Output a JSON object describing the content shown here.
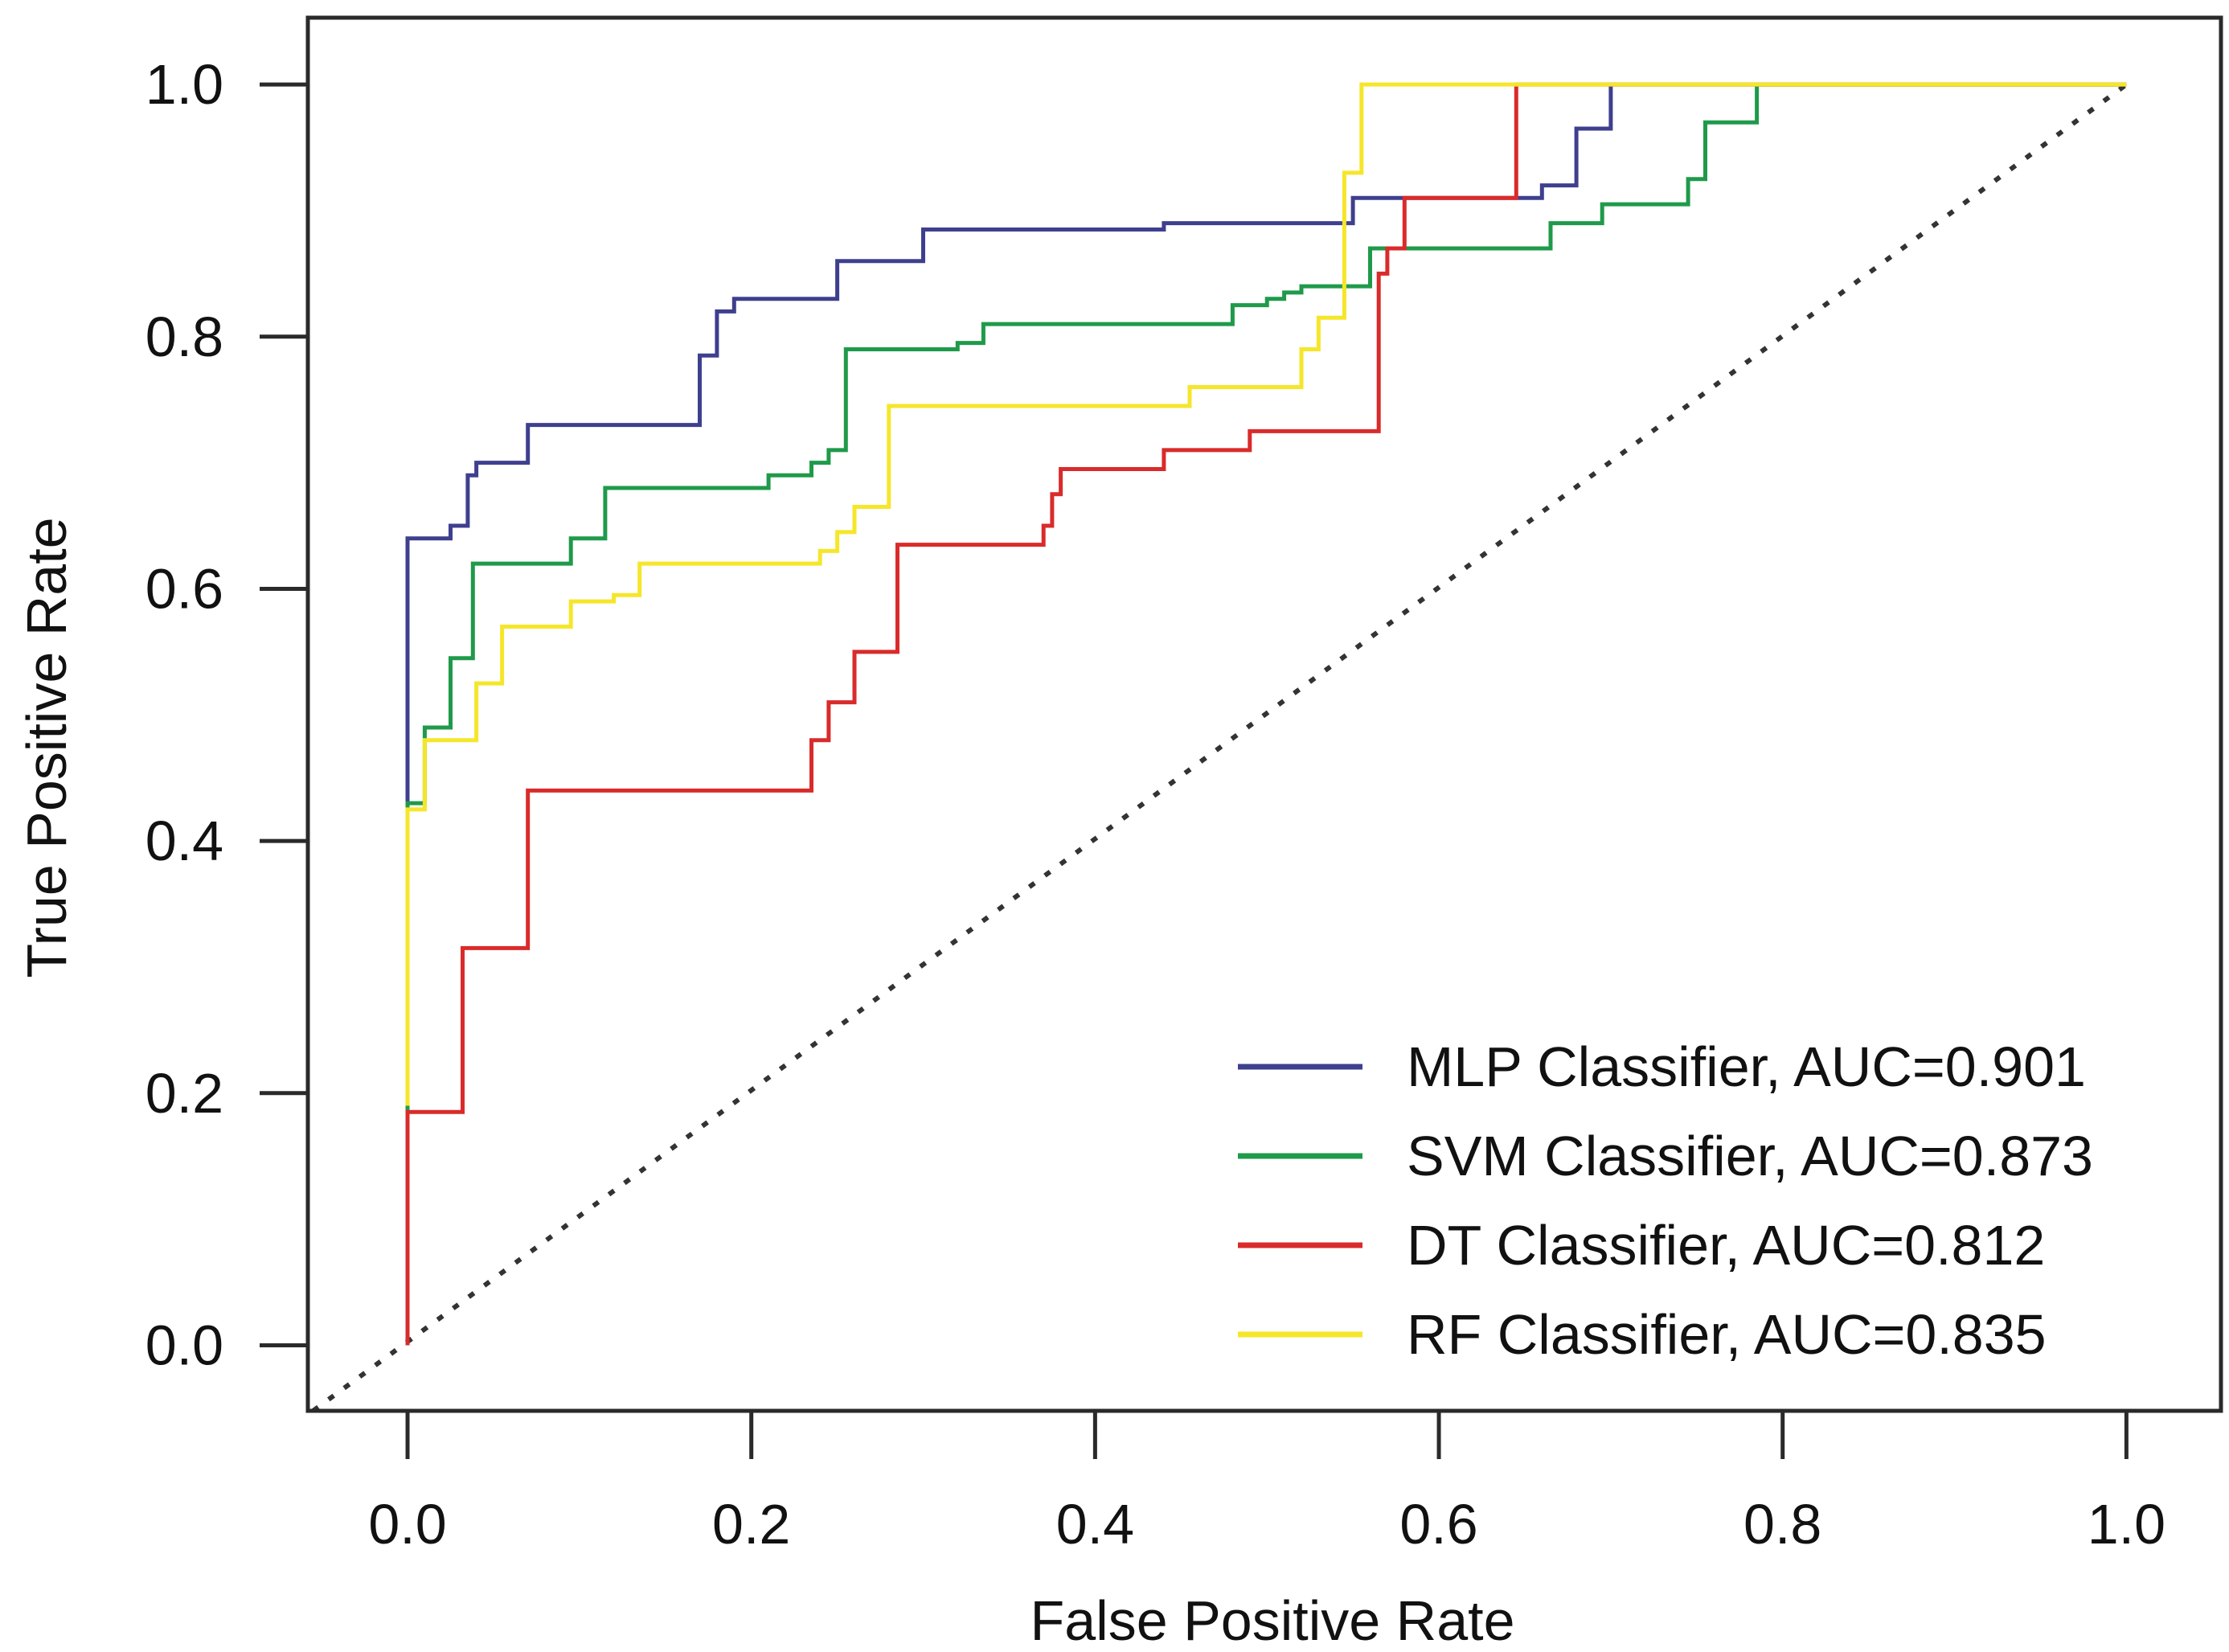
{
  "chart_data": {
    "type": "line",
    "title": "",
    "xlabel": "False Positive Rate",
    "ylabel": "True Positive Rate",
    "xlim": [
      -0.058,
      1.055
    ],
    "ylim": [
      -0.052,
      1.053
    ],
    "xticks": [
      0.0,
      0.2,
      0.4,
      0.6,
      0.8,
      1.0
    ],
    "xtick_labels": [
      "0.0",
      "0.2",
      "0.4",
      "0.6",
      "0.8",
      "1.0"
    ],
    "yticks": [
      0.0,
      0.2,
      0.4,
      0.6,
      0.8,
      1.0
    ],
    "ytick_labels": [
      "0.0",
      "0.2",
      "0.4",
      "0.6",
      "0.8",
      "1.0"
    ],
    "grid": false,
    "legend_position": "bottom-right",
    "reference_line": {
      "name": "chance",
      "style": "dotted",
      "color": "#333333",
      "x": [
        -0.055,
        1.0
      ],
      "y": [
        -0.052,
        1.0
      ]
    },
    "series": [
      {
        "name": "MLP Classifier, AUC=0.901",
        "color": "#3f3f8f",
        "x": [
          0.0,
          0.0,
          0.025,
          0.025,
          0.035,
          0.035,
          0.04,
          0.04,
          0.07,
          0.07,
          0.17,
          0.17,
          0.18,
          0.18,
          0.19,
          0.19,
          0.25,
          0.25,
          0.3,
          0.3,
          0.44,
          0.44,
          0.55,
          0.55,
          0.66,
          0.66,
          0.68,
          0.68,
          0.7,
          0.7,
          1.0
        ],
        "y": [
          0.0,
          0.64,
          0.64,
          0.65,
          0.65,
          0.69,
          0.69,
          0.7,
          0.7,
          0.73,
          0.73,
          0.785,
          0.785,
          0.82,
          0.82,
          0.83,
          0.83,
          0.86,
          0.86,
          0.885,
          0.885,
          0.89,
          0.89,
          0.91,
          0.91,
          0.92,
          0.92,
          0.965,
          0.965,
          1.0,
          1.0
        ]
      },
      {
        "name": "SVM Classifier, AUC=0.873",
        "color": "#1f9a4a",
        "x": [
          0.0,
          0.0,
          0.01,
          0.01,
          0.025,
          0.025,
          0.038,
          0.038,
          0.095,
          0.095,
          0.115,
          0.115,
          0.21,
          0.21,
          0.235,
          0.235,
          0.245,
          0.245,
          0.255,
          0.255,
          0.32,
          0.32,
          0.335,
          0.335,
          0.48,
          0.48,
          0.5,
          0.5,
          0.51,
          0.51,
          0.52,
          0.52,
          0.56,
          0.56,
          0.665,
          0.665,
          0.695,
          0.695,
          0.745,
          0.745,
          0.755,
          0.755,
          0.785,
          0.785,
          1.0
        ],
        "y": [
          0.0,
          0.43,
          0.43,
          0.49,
          0.49,
          0.545,
          0.545,
          0.62,
          0.62,
          0.64,
          0.64,
          0.68,
          0.68,
          0.69,
          0.69,
          0.7,
          0.7,
          0.71,
          0.71,
          0.79,
          0.79,
          0.795,
          0.795,
          0.81,
          0.81,
          0.825,
          0.825,
          0.83,
          0.83,
          0.835,
          0.835,
          0.84,
          0.84,
          0.87,
          0.87,
          0.89,
          0.89,
          0.905,
          0.905,
          0.925,
          0.925,
          0.97,
          0.97,
          1.0,
          1.0
        ]
      },
      {
        "name": "DT Classifier, AUC=0.812",
        "color": "#d92b2b",
        "x": [
          0.0,
          0.0,
          0.032,
          0.032,
          0.07,
          0.07,
          0.235,
          0.235,
          0.245,
          0.245,
          0.26,
          0.26,
          0.285,
          0.285,
          0.37,
          0.37,
          0.375,
          0.375,
          0.38,
          0.38,
          0.44,
          0.44,
          0.49,
          0.49,
          0.565,
          0.565,
          0.57,
          0.57,
          0.58,
          0.58,
          0.645,
          0.645,
          1.0
        ],
        "y": [
          0.0,
          0.185,
          0.185,
          0.315,
          0.315,
          0.44,
          0.44,
          0.48,
          0.48,
          0.51,
          0.51,
          0.55,
          0.55,
          0.635,
          0.635,
          0.65,
          0.65,
          0.675,
          0.675,
          0.695,
          0.695,
          0.71,
          0.71,
          0.725,
          0.725,
          0.85,
          0.85,
          0.87,
          0.87,
          0.91,
          0.91,
          1.0,
          1.0
        ]
      },
      {
        "name": "RF Classifier, AUC=0.835",
        "color": "#f5e62a",
        "x": [
          0.0,
          0.0,
          0.01,
          0.01,
          0.04,
          0.04,
          0.055,
          0.055,
          0.095,
          0.095,
          0.12,
          0.12,
          0.135,
          0.135,
          0.24,
          0.24,
          0.25,
          0.25,
          0.26,
          0.26,
          0.28,
          0.28,
          0.455,
          0.455,
          0.52,
          0.52,
          0.53,
          0.53,
          0.545,
          0.545,
          0.555,
          0.555,
          0.57,
          0.57,
          0.65,
          1.0
        ],
        "y": [
          0.19,
          0.425,
          0.425,
          0.48,
          0.48,
          0.525,
          0.525,
          0.57,
          0.57,
          0.59,
          0.59,
          0.595,
          0.595,
          0.62,
          0.62,
          0.63,
          0.63,
          0.645,
          0.645,
          0.665,
          0.665,
          0.745,
          0.745,
          0.76,
          0.76,
          0.79,
          0.79,
          0.815,
          0.815,
          0.93,
          0.93,
          1.0,
          1.0,
          1.0,
          1.0,
          1.0
        ]
      }
    ]
  }
}
